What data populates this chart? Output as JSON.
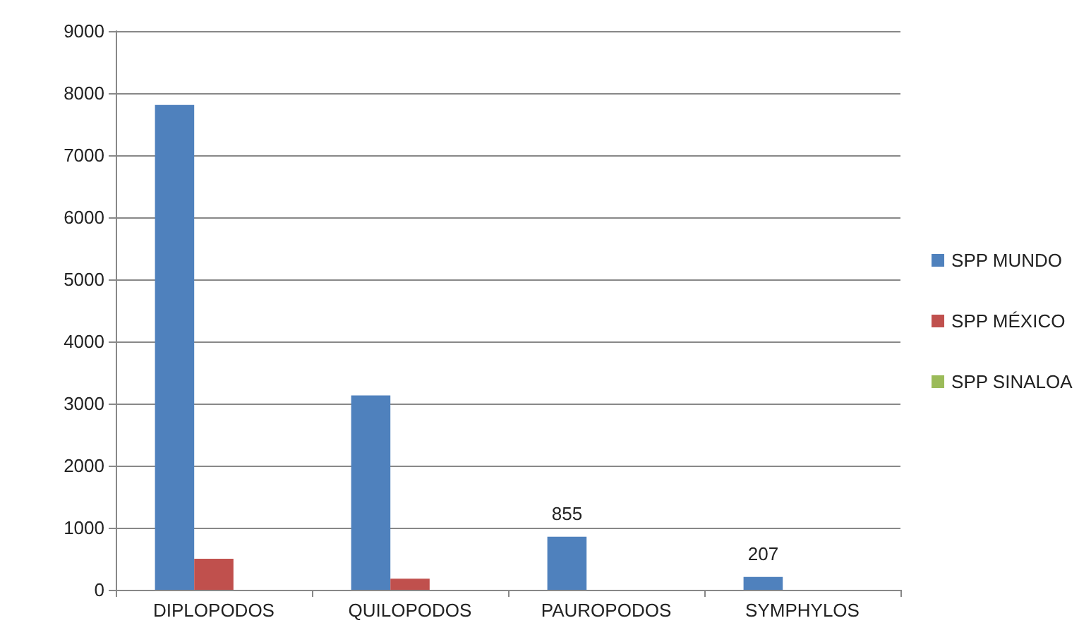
{
  "chart_data": {
    "type": "bar",
    "categories": [
      "DIPLOPODOS",
      "QUILOPODOS",
      "PAUROPODOS",
      "SYMPHYLOS"
    ],
    "series": [
      {
        "name": "SPP MUNDO",
        "color": "#4f81bd",
        "values": [
          7810,
          3130,
          855,
          207
        ],
        "value_labels": [
          null,
          null,
          "855",
          "207"
        ]
      },
      {
        "name": "SPP MÉXICO",
        "color": "#c0504d",
        "values": [
          500,
          180,
          null,
          null
        ]
      },
      {
        "name": "SPP SINALOA",
        "color": "#9bbb59",
        "values": [
          null,
          null,
          null,
          null
        ]
      }
    ],
    "ylim": [
      0,
      9000
    ],
    "yticks": [
      0,
      1000,
      2000,
      3000,
      4000,
      5000,
      6000,
      7000,
      8000,
      9000
    ],
    "grid": "y",
    "legend": "right"
  }
}
